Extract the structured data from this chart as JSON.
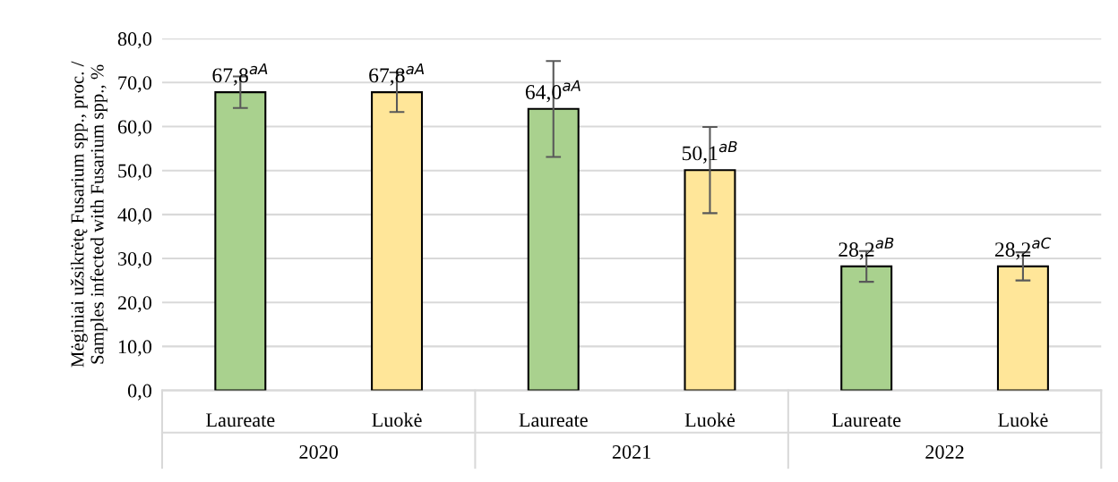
{
  "chart_data": {
    "type": "bar",
    "ylabel": "Mėginiai užsikrėtę Fusarium spp., proc. /\nSamples infected with Fusarium spp., %",
    "categories": [
      "Laureate",
      "Luokė",
      "Laureate",
      "Luokė",
      "Laureate",
      "Luokė"
    ],
    "values": [
      67.8,
      67.8,
      64.0,
      50.1,
      28.2,
      28.2
    ],
    "colors": [
      "#a9d18e",
      "#ffe699",
      "#a9d18e",
      "#ffe699",
      "#a9d18e",
      "#ffe699"
    ],
    "errors": [
      3.6,
      4.5,
      10.9,
      9.8,
      3.5,
      3.2
    ],
    "value_labels": [
      "67,8$^{aA}$",
      "67,8$^{aA}$",
      "64,0$^{aA}$",
      "50,1$^{aB}$",
      "28,2$^{aB}$",
      "28,2$^{aC}$"
    ],
    "annotations": [
      "2020",
      "2021",
      "2022"
    ],
    "ylim": [
      0,
      80
    ],
    "yticks": [
      {
        "value": 0,
        "label": "0,0"
      },
      {
        "value": 10,
        "label": "10,0"
      },
      {
        "value": 20,
        "label": "20,0"
      },
      {
        "value": 30,
        "label": "30,0"
      },
      {
        "value": 40,
        "label": "40,0"
      },
      {
        "value": 50,
        "label": "50,0"
      },
      {
        "value": 60,
        "label": "60,0"
      },
      {
        "value": 70,
        "label": "70,0"
      },
      {
        "value": 80,
        "label": "80,0"
      }
    ],
    "grid": "y"
  }
}
